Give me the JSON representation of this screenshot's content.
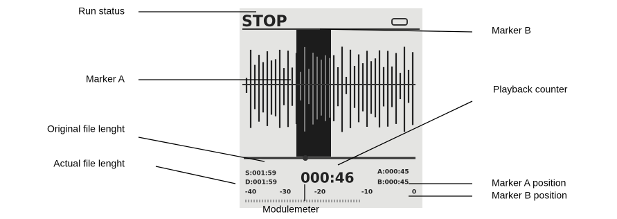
{
  "callouts": {
    "run_status": "Run status",
    "marker_a": "Marker A",
    "original_length": "Original file lenght",
    "actual_length": "Actual file lenght",
    "modulemeter": "Modulemeter",
    "marker_b": "Marker B",
    "playback_counter": "Playback counter",
    "marker_a_position": "Marker A position",
    "marker_b_position": "Marker B position"
  },
  "screen": {
    "status": "STOP",
    "original_length": "S:001:59",
    "actual_length": "D:001:59",
    "counter": "000:46",
    "marker_a_position": "A:000:45",
    "marker_b_position": "B:000:45",
    "meter_scale": [
      "-40",
      "-30",
      "-20",
      "-10",
      "0"
    ]
  }
}
